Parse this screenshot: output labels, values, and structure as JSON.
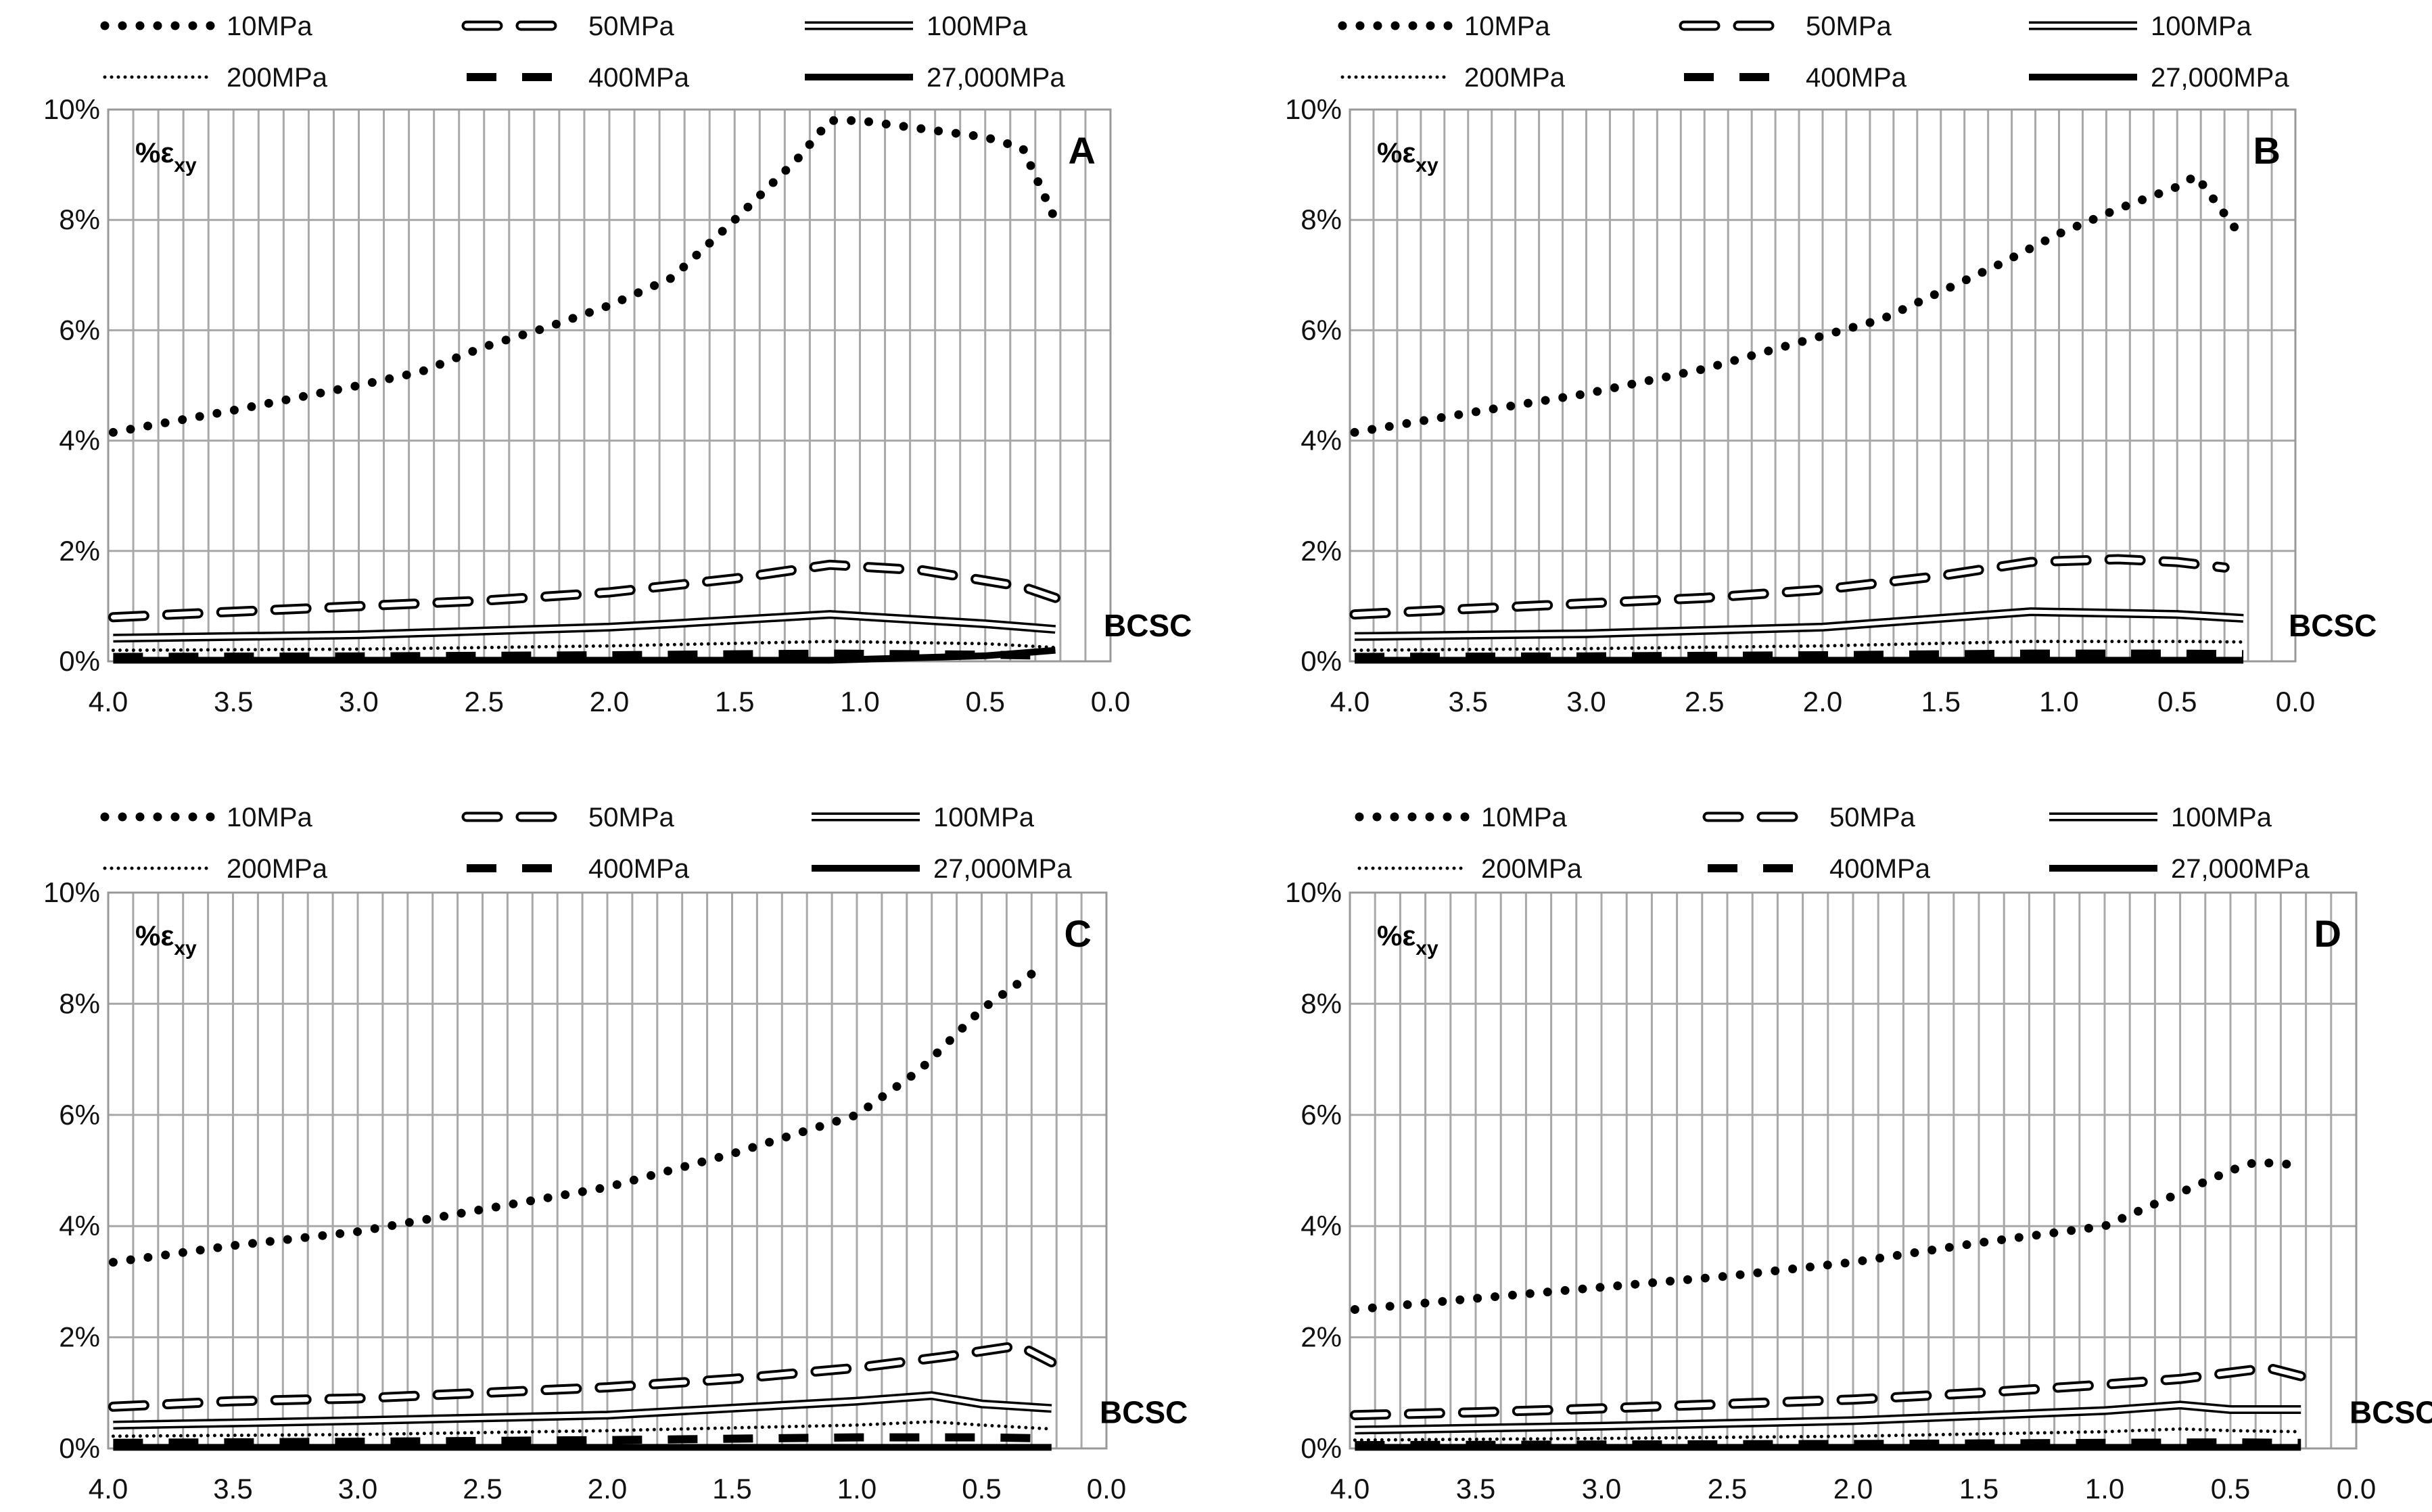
{
  "chart_data": [
    {
      "type": "line",
      "panel": "A",
      "ylabel": "%ε",
      "ylabel_sub": "xy",
      "annotation": "BCSC",
      "xlim": [
        4.0,
        0.0
      ],
      "ylim": [
        0,
        10
      ],
      "xticks": [
        "4.0",
        "3.5",
        "3.0",
        "2.5",
        "2.0",
        "1.5",
        "1.0",
        "0.5",
        "0.0"
      ],
      "yticks": [
        "0%",
        "2%",
        "4%",
        "6%",
        "8%",
        "10%"
      ],
      "grid": true,
      "series": [
        {
          "name": "10MPa",
          "x": [
            3.98,
            3.5,
            3.0,
            2.75,
            2.5,
            2.25,
            2.0,
            1.75,
            1.5,
            1.25,
            1.12,
            1.0,
            0.75,
            0.5,
            0.35,
            0.22
          ],
          "y": [
            4.15,
            4.55,
            5.0,
            5.25,
            5.7,
            6.05,
            6.45,
            6.95,
            8.0,
            9.1,
            9.8,
            9.8,
            9.65,
            9.5,
            9.3,
            8.0
          ]
        },
        {
          "name": "50MPa",
          "x": [
            3.98,
            3.5,
            3.0,
            2.5,
            2.0,
            1.5,
            1.12,
            0.75,
            0.35,
            0.22
          ],
          "y": [
            0.8,
            0.9,
            1.0,
            1.1,
            1.25,
            1.5,
            1.75,
            1.65,
            1.35,
            1.15
          ]
        },
        {
          "name": "100MPa",
          "x": [
            3.98,
            3.0,
            2.0,
            1.75,
            1.12,
            0.5,
            0.22
          ],
          "y": [
            0.42,
            0.48,
            0.62,
            0.68,
            0.85,
            0.68,
            0.58
          ]
        },
        {
          "name": "200MPa",
          "x": [
            3.98,
            3.0,
            2.0,
            1.12,
            0.5,
            0.22
          ],
          "y": [
            0.2,
            0.22,
            0.28,
            0.36,
            0.32,
            0.25
          ]
        },
        {
          "name": "400MPa",
          "x": [
            3.98,
            3.0,
            2.0,
            1.12,
            0.5,
            0.22
          ],
          "y": [
            0.08,
            0.09,
            0.11,
            0.14,
            0.12,
            0.1
          ]
        },
        {
          "name": "27,000MPa",
          "x": [
            3.98,
            3.0,
            2.0,
            1.12,
            0.5,
            0.22
          ],
          "y": [
            0.02,
            0.02,
            0.02,
            0.02,
            0.1,
            0.2
          ]
        }
      ]
    },
    {
      "type": "line",
      "panel": "B",
      "ylabel": "%ε",
      "ylabel_sub": "xy",
      "annotation": "BCSC",
      "xlim": [
        4.0,
        0.0
      ],
      "ylim": [
        0,
        10
      ],
      "xticks": [
        "4.0",
        "3.5",
        "3.0",
        "2.5",
        "2.0",
        "1.5",
        "1.0",
        "0.5",
        "0.0"
      ],
      "yticks": [
        "0%",
        "2%",
        "4%",
        "6%",
        "8%",
        "10%"
      ],
      "grid": true,
      "series": [
        {
          "name": "10MPa",
          "x": [
            3.98,
            3.5,
            3.0,
            2.5,
            2.0,
            1.75,
            1.5,
            1.25,
            1.0,
            0.75,
            0.5,
            0.42,
            0.22
          ],
          "y": [
            4.15,
            4.5,
            4.85,
            5.3,
            5.9,
            6.2,
            6.7,
            7.2,
            7.75,
            8.2,
            8.6,
            8.8,
            7.65
          ]
        },
        {
          "name": "50MPa",
          "x": [
            3.98,
            3.5,
            3.0,
            2.5,
            2.0,
            1.5,
            1.12,
            0.75,
            0.5,
            0.3
          ],
          "y": [
            0.85,
            0.95,
            1.05,
            1.15,
            1.3,
            1.55,
            1.8,
            1.85,
            1.8,
            1.7
          ]
        },
        {
          "name": "100MPa",
          "x": [
            3.98,
            3.0,
            2.0,
            1.75,
            1.12,
            0.5,
            0.22
          ],
          "y": [
            0.45,
            0.5,
            0.62,
            0.7,
            0.9,
            0.85,
            0.78
          ]
        },
        {
          "name": "200MPa",
          "x": [
            3.98,
            3.0,
            2.0,
            1.12,
            0.5,
            0.22
          ],
          "y": [
            0.2,
            0.23,
            0.28,
            0.36,
            0.36,
            0.35
          ]
        },
        {
          "name": "400MPa",
          "x": [
            3.98,
            3.0,
            2.0,
            1.12,
            0.5,
            0.22
          ],
          "y": [
            0.08,
            0.09,
            0.11,
            0.14,
            0.14,
            0.13
          ]
        },
        {
          "name": "27,000MPa",
          "x": [
            3.98,
            3.0,
            2.0,
            1.12,
            0.5,
            0.22
          ],
          "y": [
            0.02,
            0.02,
            0.02,
            0.02,
            0.02,
            0.02
          ]
        }
      ]
    },
    {
      "type": "line",
      "panel": "C",
      "ylabel": "%ε",
      "ylabel_sub": "xy",
      "annotation": "BCSC",
      "xlim": [
        4.0,
        0.0
      ],
      "ylim": [
        0,
        10
      ],
      "xticks": [
        "4.0",
        "3.5",
        "3.0",
        "2.5",
        "2.0",
        "1.5",
        "1.0",
        "0.5",
        "0.0"
      ],
      "yticks": [
        "0%",
        "2%",
        "4%",
        "6%",
        "8%",
        "10%"
      ],
      "grid": true,
      "series": [
        {
          "name": "10MPa",
          "x": [
            3.98,
            3.5,
            3.0,
            2.5,
            2.0,
            1.5,
            1.0,
            0.75,
            0.5,
            0.28
          ],
          "y": [
            3.35,
            3.65,
            3.9,
            4.3,
            4.7,
            5.3,
            6.0,
            6.8,
            7.9,
            8.6
          ]
        },
        {
          "name": "50MPa",
          "x": [
            3.98,
            3.5,
            3.0,
            2.5,
            2.0,
            1.5,
            1.0,
            0.65,
            0.35,
            0.22
          ],
          "y": [
            0.75,
            0.85,
            0.9,
            1.0,
            1.1,
            1.25,
            1.45,
            1.65,
            1.85,
            1.55
          ]
        },
        {
          "name": "100MPa",
          "x": [
            3.98,
            3.0,
            2.0,
            1.0,
            0.7,
            0.5,
            0.22
          ],
          "y": [
            0.42,
            0.5,
            0.6,
            0.85,
            0.95,
            0.8,
            0.72
          ]
        },
        {
          "name": "200MPa",
          "x": [
            3.98,
            3.0,
            2.0,
            1.0,
            0.7,
            0.5,
            0.22
          ],
          "y": [
            0.22,
            0.25,
            0.32,
            0.42,
            0.48,
            0.42,
            0.35
          ]
        },
        {
          "name": "400MPa",
          "x": [
            3.98,
            3.0,
            2.0,
            1.0,
            0.5,
            0.22
          ],
          "y": [
            0.1,
            0.12,
            0.15,
            0.2,
            0.2,
            0.18
          ]
        },
        {
          "name": "27,000MPa",
          "x": [
            3.98,
            3.0,
            2.0,
            1.0,
            0.5,
            0.22
          ],
          "y": [
            0.02,
            0.02,
            0.02,
            0.02,
            0.02,
            0.02
          ]
        }
      ]
    },
    {
      "type": "line",
      "panel": "D",
      "ylabel": "%ε",
      "ylabel_sub": "xy",
      "annotation": "BCSC",
      "xlim": [
        4.0,
        0.0
      ],
      "ylim": [
        0,
        10
      ],
      "xticks": [
        "4.0",
        "3.5",
        "3.0",
        "2.5",
        "2.0",
        "1.5",
        "1.0",
        "0.5",
        "0.0"
      ],
      "yticks": [
        "0%",
        "2%",
        "4%",
        "6%",
        "8%",
        "10%"
      ],
      "grid": true,
      "series": [
        {
          "name": "10MPa",
          "x": [
            3.98,
            3.5,
            3.0,
            2.5,
            2.0,
            1.5,
            1.0,
            0.75,
            0.5,
            0.4,
            0.22
          ],
          "y": [
            2.5,
            2.7,
            2.9,
            3.1,
            3.35,
            3.7,
            4.0,
            4.5,
            5.0,
            5.15,
            5.1
          ]
        },
        {
          "name": "50MPa",
          "x": [
            3.98,
            3.5,
            3.0,
            2.5,
            2.0,
            1.5,
            1.0,
            0.7,
            0.35,
            0.22
          ],
          "y": [
            0.6,
            0.65,
            0.72,
            0.8,
            0.88,
            1.0,
            1.15,
            1.25,
            1.45,
            1.3
          ]
        },
        {
          "name": "100MPa",
          "x": [
            3.98,
            3.0,
            2.0,
            1.0,
            0.7,
            0.5,
            0.22
          ],
          "y": [
            0.33,
            0.4,
            0.5,
            0.68,
            0.78,
            0.7,
            0.7
          ]
        },
        {
          "name": "200MPa",
          "x": [
            3.98,
            3.0,
            2.0,
            1.0,
            0.7,
            0.5,
            0.22
          ],
          "y": [
            0.15,
            0.18,
            0.22,
            0.3,
            0.35,
            0.32,
            0.3
          ]
        },
        {
          "name": "400MPa",
          "x": [
            3.98,
            3.0,
            2.0,
            1.0,
            0.5,
            0.22
          ],
          "y": [
            0.06,
            0.07,
            0.08,
            0.1,
            0.11,
            0.1
          ]
        },
        {
          "name": "27,000MPa",
          "x": [
            3.98,
            3.0,
            2.0,
            1.0,
            0.5,
            0.22
          ],
          "y": [
            0.02,
            0.02,
            0.02,
            0.02,
            0.02,
            0.02
          ]
        }
      ]
    }
  ]
}
